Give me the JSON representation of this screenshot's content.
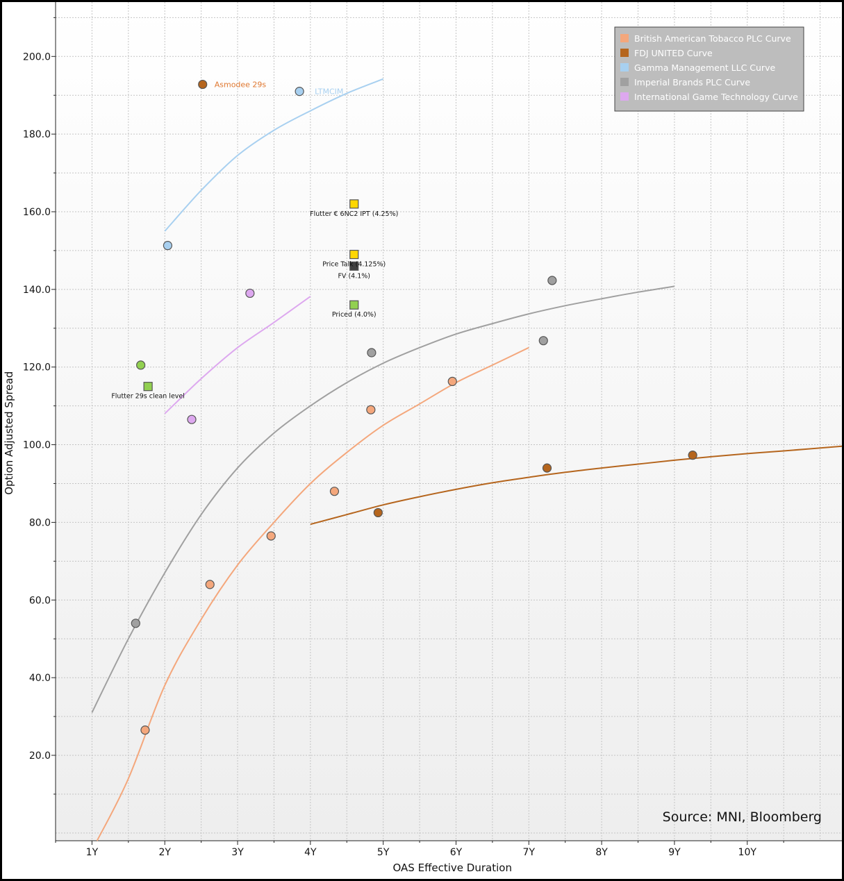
{
  "chart_data": {
    "type": "scatter",
    "xlabel": "OAS Effective Duration",
    "ylabel": "Option Adjusted Spread",
    "x_ticks": [
      "1Y",
      "2Y",
      "3Y",
      "4Y",
      "5Y",
      "6Y",
      "7Y",
      "8Y",
      "9Y",
      "10Y"
    ],
    "y_ticks": [
      "20.0",
      "40.0",
      "60.0",
      "80.0",
      "100.0",
      "120.0",
      "140.0",
      "160.0",
      "180.0",
      "200.0"
    ],
    "xlim": [
      0.5,
      11.3
    ],
    "ylim": [
      -2,
      214
    ],
    "grid": true,
    "legend_position": "top-right",
    "source": "Source: MNI, Bloomberg",
    "series": [
      {
        "name": "British American Tobacco PLC Curve",
        "color": "#f4a77c",
        "points": [
          [
            1.73,
            26.5
          ],
          [
            2.62,
            64
          ],
          [
            3.46,
            76.5
          ],
          [
            4.33,
            88
          ],
          [
            4.83,
            109
          ],
          [
            5.95,
            116.3
          ]
        ],
        "curve": [
          [
            1.07,
            -2
          ],
          [
            1.5,
            14
          ],
          [
            2,
            38
          ],
          [
            2.5,
            55
          ],
          [
            3,
            69
          ],
          [
            3.5,
            80
          ],
          [
            4,
            90
          ],
          [
            4.5,
            98
          ],
          [
            5,
            105
          ],
          [
            5.5,
            110.5
          ],
          [
            6,
            116
          ],
          [
            6.5,
            120.5
          ],
          [
            7,
            125
          ]
        ]
      },
      {
        "name": "FDJ UNITED Curve",
        "color": "#b5651d",
        "points": [
          [
            4.93,
            82.5
          ],
          [
            7.25,
            94
          ],
          [
            9.25,
            97.3
          ]
        ],
        "curve": [
          [
            4,
            79.5
          ],
          [
            4.5,
            82
          ],
          [
            5,
            84.5
          ],
          [
            5.5,
            86.6
          ],
          [
            6,
            88.5
          ],
          [
            6.5,
            90.2
          ],
          [
            7,
            91.6
          ],
          [
            7.5,
            92.9
          ],
          [
            8,
            94
          ],
          [
            8.5,
            95
          ],
          [
            9,
            96
          ],
          [
            9.5,
            96.9
          ],
          [
            10,
            97.7
          ],
          [
            10.5,
            98.4
          ],
          [
            11.3,
            99.6
          ]
        ]
      },
      {
        "name": "Gamma Management LLC Curve",
        "color": "#a8d0f0",
        "points": [
          [
            2.04,
            151.3
          ],
          [
            3.85,
            191
          ]
        ],
        "curve": [
          [
            2,
            155
          ],
          [
            2.5,
            165.5
          ],
          [
            3,
            174.5
          ],
          [
            3.5,
            181
          ],
          [
            4,
            186
          ],
          [
            4.5,
            190.5
          ],
          [
            5,
            194.2
          ]
        ]
      },
      {
        "name": "Imperial Brands PLC Curve",
        "color": "#a0a0a0",
        "points": [
          [
            1.6,
            54
          ],
          [
            4.84,
            123.7
          ],
          [
            7.2,
            126.8
          ],
          [
            7.32,
            142.3
          ]
        ],
        "curve": [
          [
            1,
            31
          ],
          [
            1.5,
            50
          ],
          [
            2,
            67
          ],
          [
            2.5,
            82
          ],
          [
            3,
            94
          ],
          [
            3.5,
            103
          ],
          [
            4,
            110
          ],
          [
            4.5,
            116
          ],
          [
            5,
            121
          ],
          [
            5.5,
            125
          ],
          [
            6,
            128.5
          ],
          [
            6.5,
            131.2
          ],
          [
            7,
            133.7
          ],
          [
            7.5,
            135.8
          ],
          [
            8,
            137.6
          ],
          [
            8.5,
            139.3
          ],
          [
            9,
            140.8
          ]
        ]
      },
      {
        "name": "International Game Technology Curve",
        "color": "#dda8ef",
        "points": [
          [
            2.37,
            106.5
          ],
          [
            3.17,
            139
          ]
        ],
        "curve": [
          [
            2,
            108
          ],
          [
            2.5,
            117
          ],
          [
            3,
            125
          ],
          [
            3.5,
            131.5
          ],
          [
            4,
            138.2
          ]
        ]
      }
    ],
    "other_points": [
      {
        "label": "Asmodee 29s",
        "x": 2.52,
        "y": 192.8,
        "shape": "circle",
        "color": "#b5651d"
      },
      {
        "label": "",
        "x": 1.67,
        "y": 120.5,
        "shape": "circle",
        "color": "#92d050"
      }
    ],
    "square_markers": [
      {
        "label": "Flutter € 6NC2 IPT (4.25%)",
        "x": 4.6,
        "y": 162,
        "color": "#ffd700"
      },
      {
        "label": "Price Talk (4.125%)",
        "x": 4.6,
        "y": 149,
        "color": "#ffd700"
      },
      {
        "label": "FV (4.1%)",
        "x": 4.6,
        "y": 146,
        "color": "#404040"
      },
      {
        "label": "Priced (4.0%)",
        "x": 4.6,
        "y": 136,
        "color": "#92d050"
      },
      {
        "label": "Flutter 29s clean level",
        "x": 1.77,
        "y": 115,
        "color": "#92d050"
      }
    ],
    "annotations": [
      {
        "text": "Asmodee 29s",
        "color": "#e07830"
      },
      {
        "text": "LTMCIM",
        "color": "#a8d0f0"
      }
    ]
  }
}
